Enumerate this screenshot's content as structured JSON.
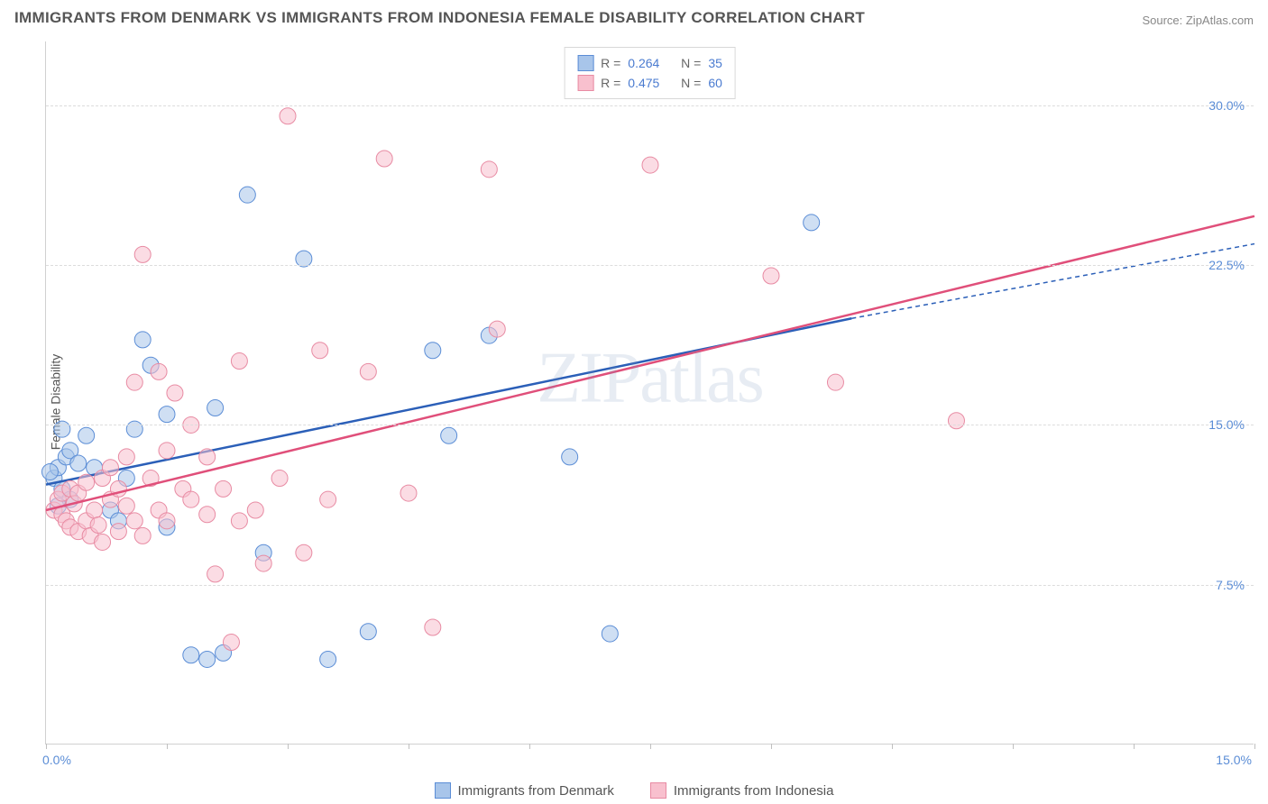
{
  "title": "IMMIGRANTS FROM DENMARK VS IMMIGRANTS FROM INDONESIA FEMALE DISABILITY CORRELATION CHART",
  "source": "Source: ZipAtlas.com",
  "ylabel": "Female Disability",
  "watermark": "ZIPatlas",
  "chart": {
    "type": "scatter",
    "xlim": [
      0,
      15
    ],
    "ylim": [
      0,
      33
    ],
    "y_ticks": [
      7.5,
      15.0,
      22.5,
      30.0
    ],
    "y_tick_labels": [
      "7.5%",
      "15.0%",
      "22.5%",
      "30.0%"
    ],
    "x_tick_positions": [
      0,
      1.5,
      3.0,
      4.5,
      6.0,
      7.5,
      9.0,
      10.5,
      12.0,
      13.5,
      15.0
    ],
    "x_min_label": "0.0%",
    "x_max_label": "15.0%",
    "grid_color": "#dcdcdc",
    "axis_color": "#d0d0d0",
    "background_color": "#ffffff",
    "tick_label_color": "#5b8dd6",
    "marker_radius": 9,
    "marker_opacity": 0.55,
    "series": [
      {
        "name": "Immigrants from Denmark",
        "color": "#7ba7e0",
        "fill": "#a8c5ea",
        "stroke": "#5b8dd6",
        "line_color": "#2b5fb8",
        "R": "0.264",
        "N": "35",
        "trend": {
          "x1": 0,
          "y1": 12.2,
          "x2": 10.0,
          "y2": 20.0,
          "dashed_to_x": 15.0,
          "dashed_to_y": 23.5
        },
        "points": [
          [
            0.1,
            12.5
          ],
          [
            0.15,
            13.0
          ],
          [
            0.2,
            12.0
          ],
          [
            0.25,
            13.5
          ],
          [
            0.3,
            11.5
          ],
          [
            0.2,
            14.8
          ],
          [
            0.3,
            13.8
          ],
          [
            0.4,
            13.2
          ],
          [
            0.15,
            11.2
          ],
          [
            0.05,
            12.8
          ],
          [
            0.5,
            14.5
          ],
          [
            0.6,
            13.0
          ],
          [
            0.8,
            11.0
          ],
          [
            0.9,
            10.5
          ],
          [
            1.0,
            12.5
          ],
          [
            1.1,
            14.8
          ],
          [
            1.2,
            19.0
          ],
          [
            1.3,
            17.8
          ],
          [
            1.5,
            15.5
          ],
          [
            1.5,
            10.2
          ],
          [
            1.8,
            4.2
          ],
          [
            2.0,
            4.0
          ],
          [
            2.2,
            4.3
          ],
          [
            2.1,
            15.8
          ],
          [
            2.5,
            25.8
          ],
          [
            2.7,
            9.0
          ],
          [
            3.2,
            22.8
          ],
          [
            3.5,
            4.0
          ],
          [
            4.0,
            5.3
          ],
          [
            4.8,
            18.5
          ],
          [
            5.0,
            14.5
          ],
          [
            5.5,
            19.2
          ],
          [
            6.5,
            13.5
          ],
          [
            7.0,
            5.2
          ],
          [
            9.5,
            24.5
          ]
        ]
      },
      {
        "name": "Immigrants from Indonesia",
        "color": "#f5a0b5",
        "fill": "#f8c0ce",
        "stroke": "#e88ba3",
        "line_color": "#e04f7a",
        "R": "0.475",
        "N": "60",
        "trend": {
          "x1": 0,
          "y1": 11.0,
          "x2": 15.0,
          "y2": 24.8
        },
        "points": [
          [
            0.1,
            11.0
          ],
          [
            0.15,
            11.5
          ],
          [
            0.2,
            10.8
          ],
          [
            0.2,
            11.8
          ],
          [
            0.25,
            10.5
          ],
          [
            0.3,
            12.0
          ],
          [
            0.3,
            10.2
          ],
          [
            0.35,
            11.3
          ],
          [
            0.4,
            10.0
          ],
          [
            0.4,
            11.8
          ],
          [
            0.5,
            10.5
          ],
          [
            0.5,
            12.3
          ],
          [
            0.55,
            9.8
          ],
          [
            0.6,
            11.0
          ],
          [
            0.65,
            10.3
          ],
          [
            0.7,
            12.5
          ],
          [
            0.7,
            9.5
          ],
          [
            0.8,
            11.5
          ],
          [
            0.8,
            13.0
          ],
          [
            0.9,
            10.0
          ],
          [
            0.9,
            12.0
          ],
          [
            1.0,
            11.2
          ],
          [
            1.0,
            13.5
          ],
          [
            1.1,
            10.5
          ],
          [
            1.1,
            17.0
          ],
          [
            1.2,
            9.8
          ],
          [
            1.2,
            23.0
          ],
          [
            1.3,
            12.5
          ],
          [
            1.4,
            11.0
          ],
          [
            1.4,
            17.5
          ],
          [
            1.5,
            10.5
          ],
          [
            1.5,
            13.8
          ],
          [
            1.6,
            16.5
          ],
          [
            1.7,
            12.0
          ],
          [
            1.8,
            11.5
          ],
          [
            1.8,
            15.0
          ],
          [
            2.0,
            10.8
          ],
          [
            2.0,
            13.5
          ],
          [
            2.1,
            8.0
          ],
          [
            2.2,
            12.0
          ],
          [
            2.3,
            4.8
          ],
          [
            2.4,
            10.5
          ],
          [
            2.4,
            18.0
          ],
          [
            2.6,
            11.0
          ],
          [
            2.7,
            8.5
          ],
          [
            2.9,
            12.5
          ],
          [
            3.0,
            29.5
          ],
          [
            3.2,
            9.0
          ],
          [
            3.4,
            18.5
          ],
          [
            3.5,
            11.5
          ],
          [
            4.0,
            17.5
          ],
          [
            4.2,
            27.5
          ],
          [
            4.5,
            11.8
          ],
          [
            4.8,
            5.5
          ],
          [
            5.5,
            27.0
          ],
          [
            5.6,
            19.5
          ],
          [
            7.5,
            27.2
          ],
          [
            9.0,
            22.0
          ],
          [
            9.8,
            17.0
          ],
          [
            11.3,
            15.2
          ]
        ]
      }
    ]
  },
  "legend_top": {
    "rows": [
      {
        "swatch_fill": "#a8c5ea",
        "swatch_stroke": "#5b8dd6",
        "r_label": "R =",
        "r_val": "0.264",
        "n_label": "N =",
        "n_val": "35"
      },
      {
        "swatch_fill": "#f8c0ce",
        "swatch_stroke": "#e88ba3",
        "r_label": "R =",
        "r_val": "0.475",
        "n_label": "N =",
        "n_val": "60"
      }
    ]
  },
  "legend_bottom": {
    "items": [
      {
        "swatch_fill": "#a8c5ea",
        "swatch_stroke": "#5b8dd6",
        "label": "Immigrants from Denmark"
      },
      {
        "swatch_fill": "#f8c0ce",
        "swatch_stroke": "#e88ba3",
        "label": "Immigrants from Indonesia"
      }
    ]
  }
}
